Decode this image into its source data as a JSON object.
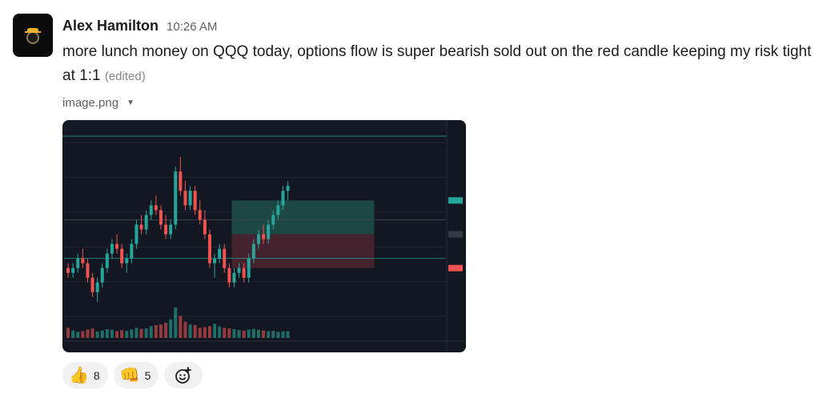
{
  "author": {
    "name": "Alex Hamilton",
    "time": "10:26 AM",
    "avatar_icon": "ninja-avatar-icon"
  },
  "message": {
    "text": "more lunch money on QQQ today, options flow is super bearish sold out on the red candle keeping my risk tight at 1:1",
    "edited_label": "(edited)"
  },
  "attachment": {
    "filename": "image.png",
    "toggle_icon": "caret-down-icon"
  },
  "chart": {
    "theme_bg": "#131722",
    "up_color": "#26a69a",
    "down_color": "#ef5350",
    "profit_zone": "#1e4d47",
    "loss_zone": "#4a2430",
    "chart_data": {
      "type": "candlestick",
      "title": "",
      "candles": [
        [
          420,
          421,
          418,
          419
        ],
        [
          419,
          421,
          418,
          420
        ],
        [
          420,
          423,
          419,
          422
        ],
        [
          422,
          424,
          420,
          421
        ],
        [
          421,
          422,
          417,
          418
        ],
        [
          418,
          419,
          414,
          415
        ],
        [
          415,
          418,
          413,
          417
        ],
        [
          417,
          421,
          416,
          420
        ],
        [
          420,
          424,
          419,
          423
        ],
        [
          423,
          426,
          422,
          425
        ],
        [
          425,
          427,
          423,
          424
        ],
        [
          424,
          425,
          420,
          421
        ],
        [
          421,
          423,
          419,
          422
        ],
        [
          422,
          426,
          421,
          425
        ],
        [
          425,
          430,
          424,
          429
        ],
        [
          429,
          431,
          427,
          428
        ],
        [
          428,
          432,
          427,
          431
        ],
        [
          431,
          434,
          430,
          433
        ],
        [
          433,
          435,
          431,
          432
        ],
        [
          432,
          433,
          428,
          429
        ],
        [
          429,
          431,
          426,
          427
        ],
        [
          427,
          430,
          426,
          429
        ],
        [
          429,
          441,
          428,
          440
        ],
        [
          440,
          443,
          435,
          436
        ],
        [
          436,
          438,
          432,
          433
        ],
        [
          433,
          437,
          432,
          436
        ],
        [
          436,
          437,
          431,
          432
        ],
        [
          432,
          434,
          429,
          430
        ],
        [
          430,
          432,
          426,
          427
        ],
        [
          427,
          428,
          420,
          421
        ],
        [
          421,
          423,
          418,
          422
        ],
        [
          422,
          425,
          421,
          424
        ],
        [
          424,
          425,
          419,
          420
        ],
        [
          420,
          421,
          416,
          417
        ],
        [
          417,
          420,
          416,
          419
        ],
        [
          419,
          421,
          418,
          420
        ],
        [
          420,
          421,
          417,
          418
        ],
        [
          418,
          423,
          417,
          422
        ],
        [
          422,
          426,
          421,
          425
        ],
        [
          425,
          428,
          424,
          427
        ],
        [
          427,
          429,
          425,
          426
        ],
        [
          426,
          430,
          425,
          429
        ],
        [
          429,
          432,
          428,
          431
        ],
        [
          431,
          434,
          430,
          433
        ],
        [
          433,
          437,
          432,
          436
        ],
        [
          436,
          438,
          434,
          437
        ]
      ],
      "volumes": [
        30,
        22,
        18,
        20,
        25,
        28,
        19,
        22,
        26,
        24,
        20,
        23,
        21,
        25,
        30,
        27,
        28,
        35,
        38,
        40,
        45,
        55,
        90,
        65,
        48,
        40,
        38,
        30,
        32,
        35,
        42,
        34,
        30,
        28,
        26,
        24,
        22,
        25,
        27,
        24,
        22,
        20,
        21,
        18,
        19,
        20
      ],
      "ylim": [
        410,
        446
      ],
      "position": {
        "entry": 427,
        "target": 434,
        "stop": 420
      }
    }
  },
  "reactions": [
    {
      "emoji": "👍",
      "icon": "thumbs-up-icon",
      "count": "8"
    },
    {
      "emoji": "👊",
      "icon": "fist-bump-icon",
      "count": "5"
    }
  ],
  "add_reaction": {
    "icon": "add-reaction-icon"
  }
}
